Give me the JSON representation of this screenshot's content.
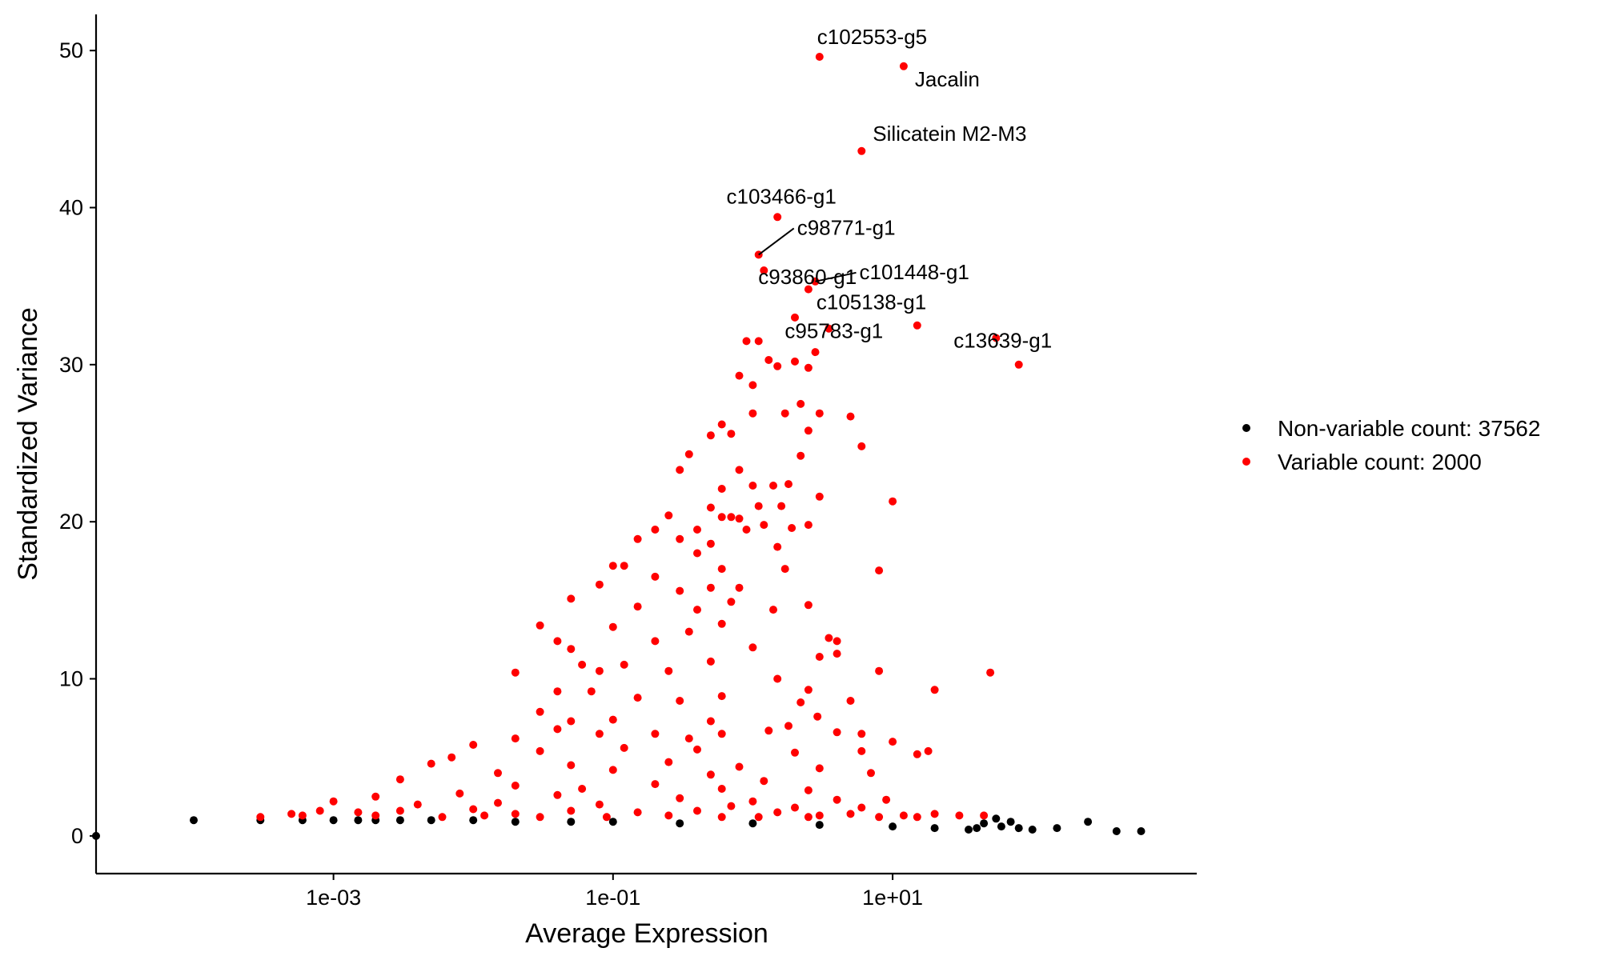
{
  "chart_data": {
    "type": "scatter",
    "xlabel": "Average Expression",
    "ylabel": "Standardized Variance",
    "x_scale": "log10",
    "xlim": [
      2e-05,
      1500
    ],
    "ylim": [
      -2.4,
      52.3
    ],
    "xticks": [
      0.001,
      0.1,
      10
    ],
    "xtick_labels": [
      "1e-03",
      "1e-01",
      "1e+01"
    ],
    "yticks": [
      0,
      10,
      20,
      30,
      40,
      50
    ],
    "ytick_labels": [
      "0",
      "10",
      "20",
      "30",
      "40",
      "50"
    ],
    "grid": false,
    "legend_position": "right",
    "colors": {
      "nonvariable": "#000000",
      "variable": "#ff0000"
    },
    "series": [
      {
        "name": "Non-variable count: 37562",
        "color": "#000000",
        "count": 37562,
        "points": [
          [
            2e-05,
            0.0
          ],
          [
            0.0001,
            1.0
          ],
          [
            0.0003,
            1.0
          ],
          [
            0.0006,
            1.0
          ],
          [
            0.001,
            1.0
          ],
          [
            0.0015,
            1.0
          ],
          [
            0.002,
            1.0
          ],
          [
            0.003,
            1.0
          ],
          [
            0.005,
            1.0
          ],
          [
            0.01,
            1.0
          ],
          [
            0.02,
            0.9
          ],
          [
            0.05,
            0.9
          ],
          [
            0.1,
            0.9
          ],
          [
            0.3,
            0.8
          ],
          [
            1.0,
            0.8
          ],
          [
            3.0,
            0.7
          ],
          [
            10.0,
            0.6
          ],
          [
            20.0,
            0.5
          ],
          [
            40.0,
            0.5
          ],
          [
            60.0,
            0.6
          ],
          [
            80.0,
            0.5
          ],
          [
            100.0,
            0.4
          ],
          [
            150.0,
            0.5
          ],
          [
            250.0,
            0.9
          ],
          [
            400.0,
            0.3
          ],
          [
            600.0,
            0.3
          ],
          [
            55.0,
            1.1
          ],
          [
            70.0,
            0.9
          ],
          [
            35.0,
            0.4
          ],
          [
            45.0,
            0.8
          ]
        ]
      },
      {
        "name": "Variable count: 2000",
        "color": "#ff0000",
        "count": 2000,
        "points": [
          [
            3.0,
            49.6
          ],
          [
            12.0,
            49.0
          ],
          [
            6.0,
            43.6
          ],
          [
            1.5,
            39.4
          ],
          [
            1.1,
            37.0
          ],
          [
            1.2,
            36.0
          ],
          [
            2.5,
            34.8
          ],
          [
            2.8,
            35.3
          ],
          [
            3.5,
            32.3
          ],
          [
            15.0,
            32.5
          ],
          [
            55.0,
            31.7
          ],
          [
            80.0,
            30.0
          ],
          [
            2.0,
            33.0
          ],
          [
            0.9,
            31.5
          ],
          [
            1.1,
            31.5
          ],
          [
            1.3,
            30.3
          ],
          [
            1.5,
            29.9
          ],
          [
            2.0,
            30.2
          ],
          [
            2.8,
            30.8
          ],
          [
            2.5,
            29.8
          ],
          [
            1.0,
            28.7
          ],
          [
            0.8,
            29.3
          ],
          [
            2.2,
            27.5
          ],
          [
            1.7,
            26.9
          ],
          [
            3.0,
            26.9
          ],
          [
            5.0,
            26.7
          ],
          [
            1.0,
            26.9
          ],
          [
            0.6,
            26.2
          ],
          [
            0.5,
            25.5
          ],
          [
            2.5,
            25.8
          ],
          [
            0.7,
            25.6
          ],
          [
            0.35,
            24.3
          ],
          [
            0.8,
            23.3
          ],
          [
            6.0,
            24.8
          ],
          [
            2.2,
            24.2
          ],
          [
            0.3,
            23.3
          ],
          [
            0.6,
            22.1
          ],
          [
            1.0,
            22.3
          ],
          [
            1.4,
            22.3
          ],
          [
            1.8,
            22.4
          ],
          [
            3.0,
            21.6
          ],
          [
            10.0,
            21.3
          ],
          [
            1.1,
            21.0
          ],
          [
            1.6,
            21.0
          ],
          [
            0.5,
            20.9
          ],
          [
            0.6,
            20.3
          ],
          [
            0.7,
            20.3
          ],
          [
            0.8,
            20.2
          ],
          [
            0.25,
            20.4
          ],
          [
            0.4,
            19.5
          ],
          [
            0.9,
            19.5
          ],
          [
            1.2,
            19.8
          ],
          [
            2.5,
            19.8
          ],
          [
            1.9,
            19.6
          ],
          [
            0.2,
            19.5
          ],
          [
            0.3,
            18.9
          ],
          [
            0.15,
            18.9
          ],
          [
            0.5,
            18.6
          ],
          [
            1.5,
            18.4
          ],
          [
            0.4,
            18.0
          ],
          [
            0.1,
            17.2
          ],
          [
            0.12,
            17.2
          ],
          [
            0.6,
            17.0
          ],
          [
            1.7,
            17.0
          ],
          [
            8.0,
            16.9
          ],
          [
            0.2,
            16.5
          ],
          [
            0.08,
            16.0
          ],
          [
            0.3,
            15.6
          ],
          [
            0.5,
            15.8
          ],
          [
            0.8,
            15.8
          ],
          [
            0.05,
            15.1
          ],
          [
            0.7,
            14.9
          ],
          [
            2.5,
            14.7
          ],
          [
            0.15,
            14.6
          ],
          [
            0.4,
            14.4
          ],
          [
            1.4,
            14.4
          ],
          [
            0.03,
            13.4
          ],
          [
            0.1,
            13.3
          ],
          [
            0.6,
            13.5
          ],
          [
            0.35,
            13.0
          ],
          [
            3.5,
            12.6
          ],
          [
            0.04,
            12.4
          ],
          [
            0.2,
            12.4
          ],
          [
            4.0,
            12.4
          ],
          [
            1.0,
            12.0
          ],
          [
            0.05,
            11.9
          ],
          [
            0.06,
            10.9
          ],
          [
            0.12,
            10.9
          ],
          [
            0.5,
            11.1
          ],
          [
            3.0,
            11.4
          ],
          [
            4.0,
            11.6
          ],
          [
            0.08,
            10.5
          ],
          [
            0.02,
            10.4
          ],
          [
            0.25,
            10.5
          ],
          [
            1.5,
            10.0
          ],
          [
            2.5,
            9.3
          ],
          [
            8.0,
            10.5
          ],
          [
            50.0,
            10.4
          ],
          [
            20.0,
            9.3
          ],
          [
            0.07,
            9.2
          ],
          [
            0.04,
            9.2
          ],
          [
            0.15,
            8.8
          ],
          [
            0.6,
            8.9
          ],
          [
            2.2,
            8.5
          ],
          [
            5.0,
            8.6
          ],
          [
            0.3,
            8.6
          ],
          [
            0.03,
            7.9
          ],
          [
            0.1,
            7.4
          ],
          [
            0.05,
            7.3
          ],
          [
            0.5,
            7.3
          ],
          [
            1.8,
            7.0
          ],
          [
            2.9,
            7.6
          ],
          [
            0.02,
            6.2
          ],
          [
            0.04,
            6.8
          ],
          [
            0.08,
            6.5
          ],
          [
            0.2,
            6.5
          ],
          [
            0.6,
            6.5
          ],
          [
            1.3,
            6.7
          ],
          [
            4.0,
            6.6
          ],
          [
            6.0,
            6.5
          ],
          [
            10.0,
            6.0
          ],
          [
            0.01,
            5.8
          ],
          [
            0.03,
            5.4
          ],
          [
            0.12,
            5.6
          ],
          [
            0.4,
            5.5
          ],
          [
            2.0,
            5.3
          ],
          [
            6.0,
            5.4
          ],
          [
            15.0,
            5.2
          ],
          [
            0.007,
            5.0
          ],
          [
            0.05,
            4.5
          ],
          [
            0.25,
            4.7
          ],
          [
            0.8,
            4.4
          ],
          [
            3.0,
            4.3
          ],
          [
            7.0,
            4.0
          ],
          [
            18.0,
            5.4
          ],
          [
            0.005,
            4.6
          ],
          [
            0.015,
            4.0
          ],
          [
            0.1,
            4.2
          ],
          [
            0.5,
            3.9
          ],
          [
            1.2,
            3.5
          ],
          [
            0.003,
            3.6
          ],
          [
            0.02,
            3.2
          ],
          [
            0.06,
            3.0
          ],
          [
            0.2,
            3.3
          ],
          [
            2.5,
            2.9
          ],
          [
            0.002,
            2.5
          ],
          [
            0.008,
            2.7
          ],
          [
            0.04,
            2.6
          ],
          [
            0.3,
            2.4
          ],
          [
            1.0,
            2.2
          ],
          [
            4.0,
            2.3
          ],
          [
            9.0,
            2.3
          ],
          [
            0.001,
            2.2
          ],
          [
            0.004,
            2.0
          ],
          [
            0.015,
            2.1
          ],
          [
            0.08,
            2.0
          ],
          [
            0.7,
            1.9
          ],
          [
            2.0,
            1.8
          ],
          [
            6.0,
            1.8
          ],
          [
            20.0,
            1.4
          ],
          [
            0.0005,
            1.4
          ],
          [
            0.0008,
            1.6
          ],
          [
            0.003,
            1.6
          ],
          [
            0.01,
            1.7
          ],
          [
            0.05,
            1.6
          ],
          [
            0.15,
            1.5
          ],
          [
            0.4,
            1.6
          ],
          [
            1.5,
            1.5
          ],
          [
            5.0,
            1.4
          ],
          [
            12.0,
            1.3
          ],
          [
            0.0003,
            1.2
          ],
          [
            0.002,
            1.3
          ],
          [
            0.02,
            1.4
          ],
          [
            0.25,
            1.3
          ],
          [
            3.0,
            1.3
          ],
          [
            30.0,
            1.3
          ],
          [
            45.0,
            1.3
          ],
          [
            0.0006,
            1.3
          ],
          [
            0.006,
            1.2
          ],
          [
            0.03,
            1.2
          ],
          [
            0.6,
            1.2
          ],
          [
            8.0,
            1.2
          ],
          [
            0.0015,
            1.5
          ],
          [
            0.012,
            1.3
          ],
          [
            0.09,
            1.2
          ],
          [
            1.1,
            1.2
          ],
          [
            15.0,
            1.2
          ],
          [
            2.5,
            1.2
          ],
          [
            0.6,
            3.0
          ],
          [
            0.35,
            6.2
          ]
        ]
      }
    ],
    "annotations": [
      {
        "text": "c102553-g5",
        "x": 3.0,
        "y": 49.6
      },
      {
        "text": "Jacalin",
        "x": 12.0,
        "y": 49.0
      },
      {
        "text": "Silicatein M2-M3",
        "x": 6.0,
        "y": 43.6
      },
      {
        "text": "c103466-g1",
        "x": 1.5,
        "y": 39.4
      },
      {
        "text": "c98771-g1",
        "x": 1.1,
        "y": 37.0
      },
      {
        "text": "c93860-g1",
        "x": 1.2,
        "y": 36.0
      },
      {
        "text": "c101448-g1",
        "x": 2.8,
        "y": 35.3
      },
      {
        "text": "c105138-g1",
        "x": 2.5,
        "y": 34.8
      },
      {
        "text": "c95783-g1",
        "x": 3.5,
        "y": 32.3
      },
      {
        "text": "c13639-g1",
        "x": 55.0,
        "y": 31.7
      }
    ]
  }
}
